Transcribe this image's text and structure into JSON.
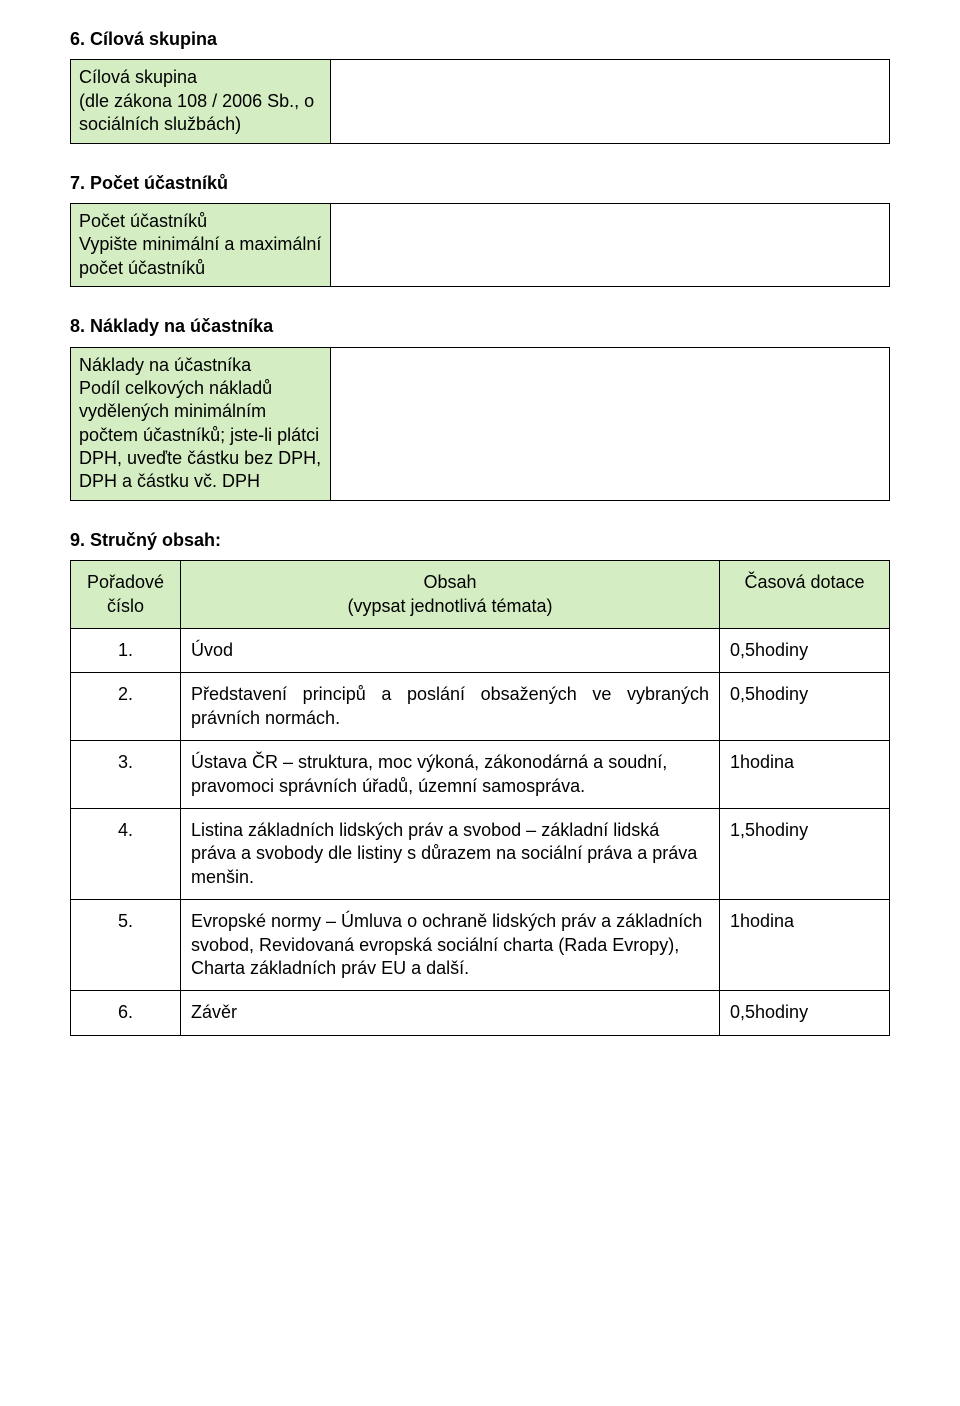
{
  "colors": {
    "label_bg": "#d4edc3",
    "border": "#000000",
    "page_bg": "#ffffff",
    "text": "#000000"
  },
  "typography": {
    "font_family": "Arial",
    "base_size_pt": 14
  },
  "section6": {
    "heading": "6.  Cílová skupina",
    "label_title": "Cílová skupina",
    "label_desc": "(dle zákona 108 / 2006 Sb., o sociálních službách)",
    "value": ""
  },
  "section7": {
    "heading": "7.  Počet účastníků",
    "label_title": "Počet účastníků",
    "label_desc": "Vypište minimální a maximální počet účastníků",
    "value": ""
  },
  "section8": {
    "heading": "8.  Náklady na účastníka",
    "label_title": "Náklady na účastníka",
    "label_desc": "Podíl celkových nákladů vydělených minimálním počtem účastníků; jste-li plátci DPH, uveďte částku bez DPH, DPH a částku vč. DPH",
    "value": ""
  },
  "section9": {
    "heading": "9.  Stručný obsah:",
    "columns": {
      "num": "Pořadové číslo",
      "content_line1": "Obsah",
      "content_line2": "(vypsat jednotlivá témata)",
      "time": "Časová dotace"
    },
    "rows": [
      {
        "num": "1.",
        "content": "Úvod",
        "time": "0,5hodiny"
      },
      {
        "num": "2.",
        "content": "Představení principů a poslání obsažených ve vybraných právních normách.",
        "time": "0,5hodiny"
      },
      {
        "num": "3.",
        "content": "Ústava ČR – struktura, moc výkoná, zákonodárná a soudní, pravomoci správních úřadů, územní samospráva.",
        "time": "1hodina"
      },
      {
        "num": "4.",
        "content": "Listina základních lidských práv a svobod – základní lidská práva a svobody dle listiny s důrazem na sociální práva a práva menšin.",
        "time": "1,5hodiny"
      },
      {
        "num": "5.",
        "content": "Evropské normy – Úmluva o ochraně lidských práv a základních svobod, Revidovaná evropská sociální charta (Rada Evropy), Charta základních práv EU a další.",
        "time": "1hodina"
      },
      {
        "num": "6.",
        "content": "Závěr",
        "time": "0,5hodiny"
      }
    ]
  }
}
